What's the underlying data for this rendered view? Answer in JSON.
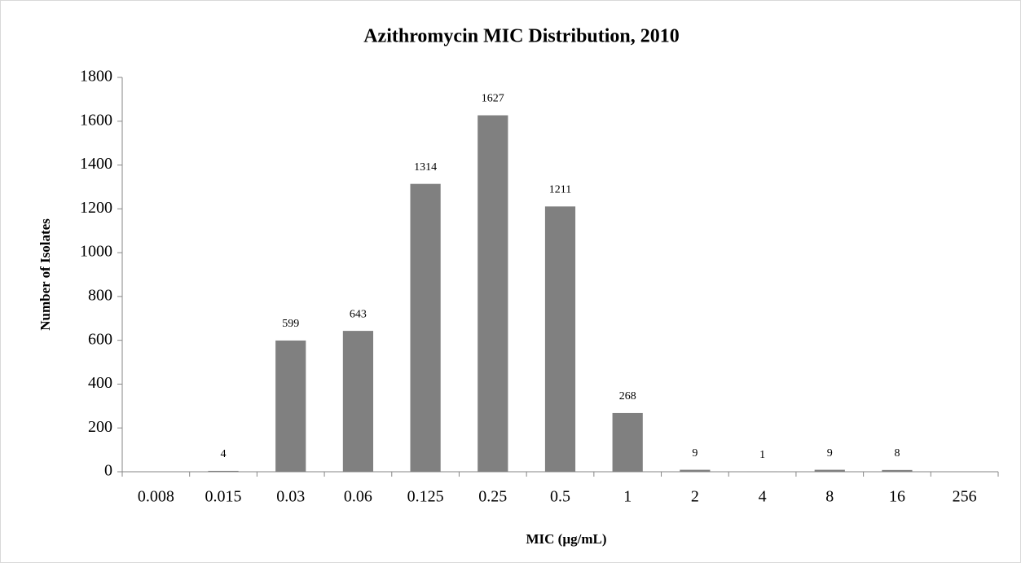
{
  "chart_data": {
    "type": "bar",
    "title": "Azithromycin MIC Distribution, 2010",
    "x_label": "MIC (µg/mL)",
    "y_label": "Number of Isolates",
    "categories": [
      "0.008",
      "0.015",
      "0.03",
      "0.06",
      "0.125",
      "0.25",
      "0.5",
      "1",
      "2",
      "4",
      "8",
      "16",
      "256"
    ],
    "values": [
      null,
      4,
      599,
      643,
      1314,
      1627,
      1211,
      268,
      9,
      1,
      9,
      8,
      null
    ],
    "color": "#808080",
    "ylim": [
      0,
      1800
    ],
    "yticks": [
      0,
      200,
      400,
      600,
      800,
      1000,
      1200,
      1400,
      1600,
      1800
    ],
    "grid": false
  }
}
